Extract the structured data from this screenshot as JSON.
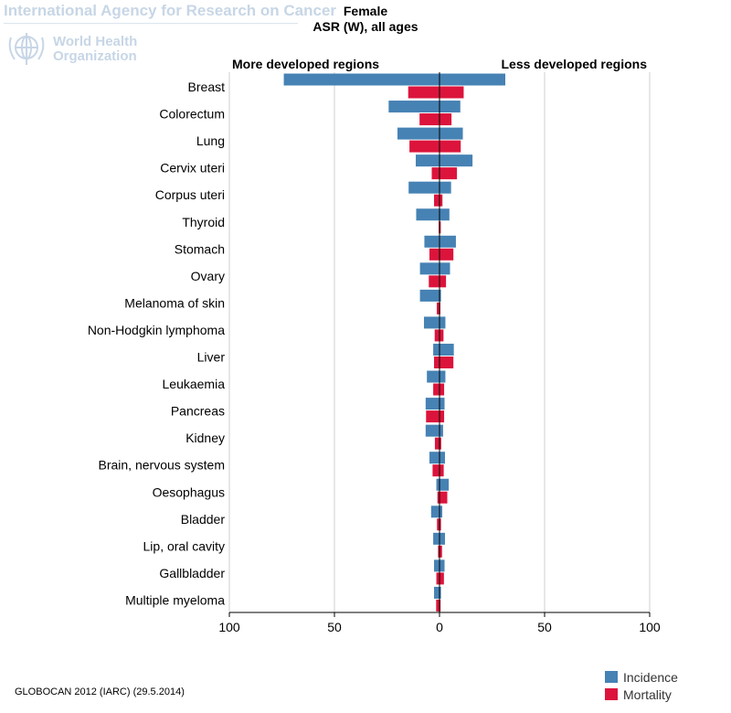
{
  "header": {
    "agency": "International Agency for Research on Cancer",
    "who_line1": "World Health",
    "who_line2": "Organization"
  },
  "chart_data": {
    "type": "bar",
    "orientation": "horizontal-butterfly",
    "title": "Female",
    "subtitle": "ASR (W), all ages",
    "left_label": "More developed regions",
    "right_label": "Less developed regions",
    "xlim": [
      -100,
      100
    ],
    "ticks": [
      {
        "value": -100,
        "label": "100"
      },
      {
        "value": -50,
        "label": "50"
      },
      {
        "value": 0,
        "label": "0"
      },
      {
        "value": 50,
        "label": "50"
      },
      {
        "value": 100,
        "label": "100"
      }
    ],
    "grid": true,
    "categories": [
      "Breast",
      "Colorectum",
      "Lung",
      "Cervix uteri",
      "Corpus uteri",
      "Thyroid",
      "Stomach",
      "Ovary",
      "Melanoma of skin",
      "Non-Hodgkin lymphoma",
      "Liver",
      "Leukaemia",
      "Pancreas",
      "Kidney",
      "Brain, nervous system",
      "Oesophagus",
      "Bladder",
      "Lip, oral cavity",
      "Gallbladder",
      "Multiple myeloma"
    ],
    "series": [
      {
        "name": "Incidence",
        "color": "#4682b4",
        "region": "More developed regions",
        "values": [
          74.1,
          24.2,
          20.0,
          11.3,
          14.7,
          11.1,
          7.2,
          9.3,
          9.3,
          7.4,
          3.0,
          6.0,
          6.6,
          6.6,
          4.8,
          1.5,
          4.0,
          3.0,
          2.6,
          2.6
        ]
      },
      {
        "name": "Incidence",
        "color": "#4682b4",
        "region": "Less developed regions",
        "values": [
          31.3,
          9.9,
          11.1,
          15.7,
          5.5,
          4.7,
          7.8,
          5.0,
          0.7,
          2.8,
          6.8,
          2.8,
          2.4,
          1.7,
          2.6,
          4.4,
          1.3,
          2.6,
          2.4,
          0.7
        ]
      },
      {
        "name": "Mortality",
        "color": "#dc143c",
        "region": "More developed regions",
        "values": [
          14.9,
          9.5,
          14.3,
          3.7,
          2.6,
          0.4,
          4.8,
          5.1,
          1.3,
          2.3,
          2.6,
          3.0,
          6.4,
          2.2,
          3.3,
          1.0,
          1.2,
          0.7,
          1.5,
          1.6
        ]
      },
      {
        "name": "Mortality",
        "color": "#dc143c",
        "region": "Less developed regions",
        "values": [
          11.5,
          5.7,
          10.1,
          8.3,
          1.4,
          0.6,
          6.6,
          3.1,
          0.4,
          1.9,
          6.6,
          2.2,
          2.2,
          0.8,
          2.0,
          3.7,
          0.7,
          1.2,
          2.1,
          0.5
        ]
      }
    ],
    "legend": {
      "position": "bottom-right",
      "items": [
        {
          "label": "Incidence",
          "color": "#4682b4"
        },
        {
          "label": "Mortality",
          "color": "#dc143c"
        }
      ]
    }
  },
  "footer": "GLOBOCAN 2012 (IARC) (29.5.2014)"
}
